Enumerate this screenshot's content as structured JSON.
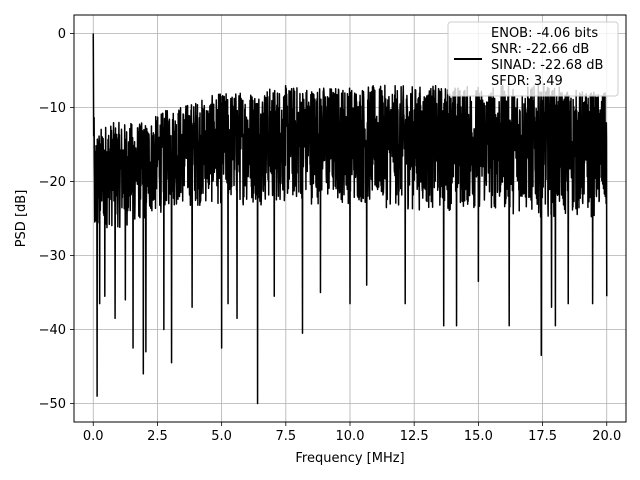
{
  "chart_data": {
    "type": "line",
    "xlabel": "Frequency [MHz]",
    "ylabel": "PSD [dB]",
    "xlim": [
      -0.75,
      20.75
    ],
    "ylim": [
      -52.5,
      2.5
    ],
    "xticks": [
      0.0,
      2.5,
      5.0,
      7.5,
      10.0,
      12.5,
      15.0,
      17.5,
      20.0
    ],
    "xtick_labels": [
      "0.0",
      "2.5",
      "5.0",
      "7.5",
      "10.0",
      "12.5",
      "15.0",
      "17.5",
      "20.0"
    ],
    "yticks": [
      0,
      -10,
      -20,
      -30,
      -40,
      -50
    ],
    "ytick_labels": [
      "0",
      "−10",
      "−20",
      "−30",
      "−40",
      "−50"
    ],
    "grid": true,
    "legend_position": "top-right",
    "legend_entries": [
      "ENOB: -4.06 bits",
      "SNR: -22.66 dB",
      "SINAD: -22.68 dB",
      "SFDR: 3.49"
    ],
    "series": [
      {
        "color": "#000000",
        "x_range": [
          0.0,
          20.0
        ],
        "envelope": {
          "x": [
            0.0,
            0.05,
            0.1,
            0.2,
            0.5,
            1.0,
            2.0,
            2.5,
            3.0,
            5.0,
            7.5,
            10.0,
            12.5,
            15.0,
            17.5,
            20.0
          ],
          "upper": [
            0.0,
            -17.0,
            -12.0,
            -13.0,
            -12.0,
            -12.0,
            -12.0,
            -11.0,
            -10.0,
            -8.0,
            -7.0,
            -7.0,
            -7.0,
            -7.0,
            -7.0,
            -8.0
          ],
          "lower": [
            -17.0,
            -30.0,
            -34.0,
            -30.0,
            -29.0,
            -29.0,
            -28.0,
            -27.0,
            -26.0,
            -26.0,
            -26.0,
            -26.0,
            -27.0,
            -27.0,
            -28.0,
            -28.0
          ]
        },
        "dips": [
          {
            "x": 0.15,
            "y": -49.0
          },
          {
            "x": 0.25,
            "y": -36.5
          },
          {
            "x": 0.45,
            "y": -35.5
          },
          {
            "x": 0.85,
            "y": -38.5
          },
          {
            "x": 1.25,
            "y": -36.0
          },
          {
            "x": 1.55,
            "y": -42.5
          },
          {
            "x": 1.95,
            "y": -46.0
          },
          {
            "x": 2.05,
            "y": -43.0
          },
          {
            "x": 2.75,
            "y": -40.0
          },
          {
            "x": 3.05,
            "y": -44.5
          },
          {
            "x": 3.85,
            "y": -37.0
          },
          {
            "x": 5.0,
            "y": -42.5
          },
          {
            "x": 5.25,
            "y": -36.5
          },
          {
            "x": 5.6,
            "y": -38.5
          },
          {
            "x": 6.4,
            "y": -50.0
          },
          {
            "x": 7.05,
            "y": -35.5
          },
          {
            "x": 8.15,
            "y": -40.5
          },
          {
            "x": 8.85,
            "y": -35.0
          },
          {
            "x": 10.0,
            "y": -36.5
          },
          {
            "x": 10.65,
            "y": -34.0
          },
          {
            "x": 12.15,
            "y": -36.5
          },
          {
            "x": 13.65,
            "y": -39.5
          },
          {
            "x": 14.15,
            "y": -39.5
          },
          {
            "x": 15.0,
            "y": -33.5
          },
          {
            "x": 16.2,
            "y": -39.5
          },
          {
            "x": 17.45,
            "y": -43.5
          },
          {
            "x": 17.85,
            "y": -37.0
          },
          {
            "x": 18.0,
            "y": -39.5
          },
          {
            "x": 18.5,
            "y": -36.5
          },
          {
            "x": 19.45,
            "y": -36.5
          },
          {
            "x": 20.0,
            "y": -35.5
          }
        ]
      }
    ]
  }
}
